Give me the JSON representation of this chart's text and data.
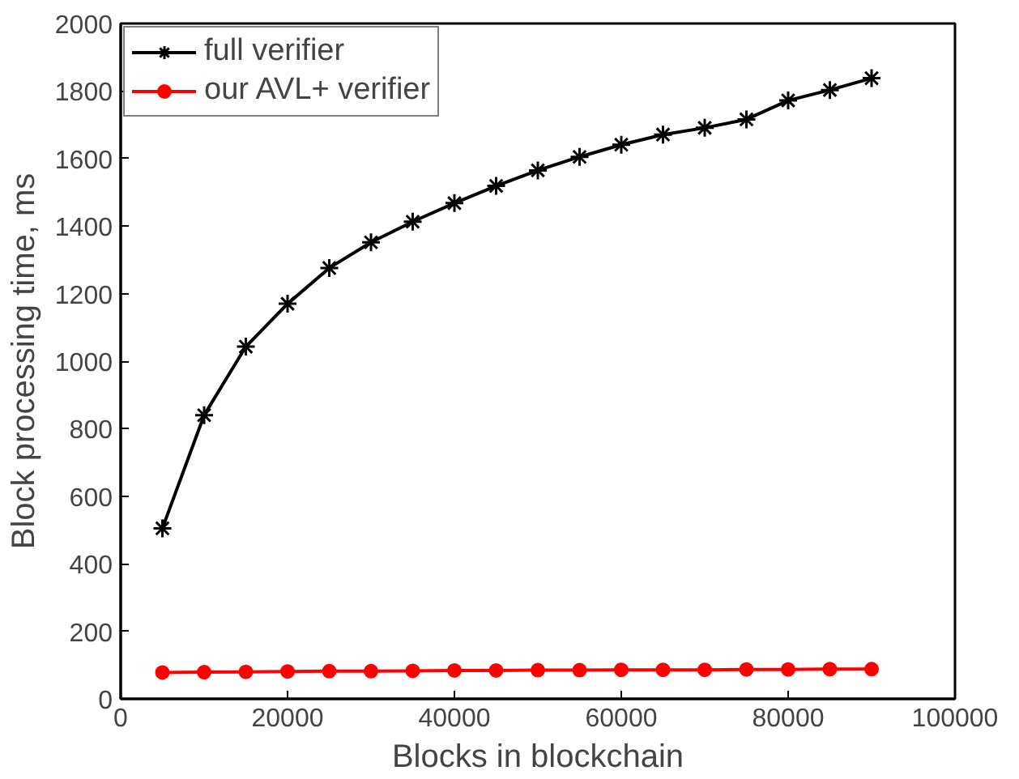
{
  "chart_data": {
    "type": "line",
    "xlabel": "Blocks in blockchain",
    "ylabel": "Block processing time, ms",
    "x": [
      5000,
      10000,
      15000,
      20000,
      25000,
      30000,
      35000,
      40000,
      45000,
      50000,
      55000,
      60000,
      65000,
      70000,
      75000,
      80000,
      85000,
      90000
    ],
    "series": [
      {
        "name": "full verifier",
        "color": "#000000",
        "marker": "cross",
        "values": [
          505,
          840,
          1043,
          1170,
          1276,
          1352,
          1413,
          1468,
          1519,
          1565,
          1605,
          1641,
          1671,
          1691,
          1716,
          1772,
          1803,
          1838
        ]
      },
      {
        "name": "our AVL+ verifier",
        "color": "#ff0000",
        "marker": "circle",
        "values": [
          78,
          79,
          80,
          81,
          82,
          82,
          83,
          84,
          84,
          85,
          85,
          86,
          86,
          86,
          87,
          87,
          88,
          88
        ]
      }
    ],
    "xlim": [
      0,
      100000
    ],
    "xticks": [
      0,
      20000,
      40000,
      60000,
      80000,
      100000
    ],
    "ylim": [
      0,
      2000
    ],
    "yticks": [
      0,
      200,
      400,
      600,
      800,
      1000,
      1200,
      1400,
      1600,
      1800,
      2000
    ],
    "grid": false,
    "legend": "top left",
    "line_style": "solid"
  }
}
